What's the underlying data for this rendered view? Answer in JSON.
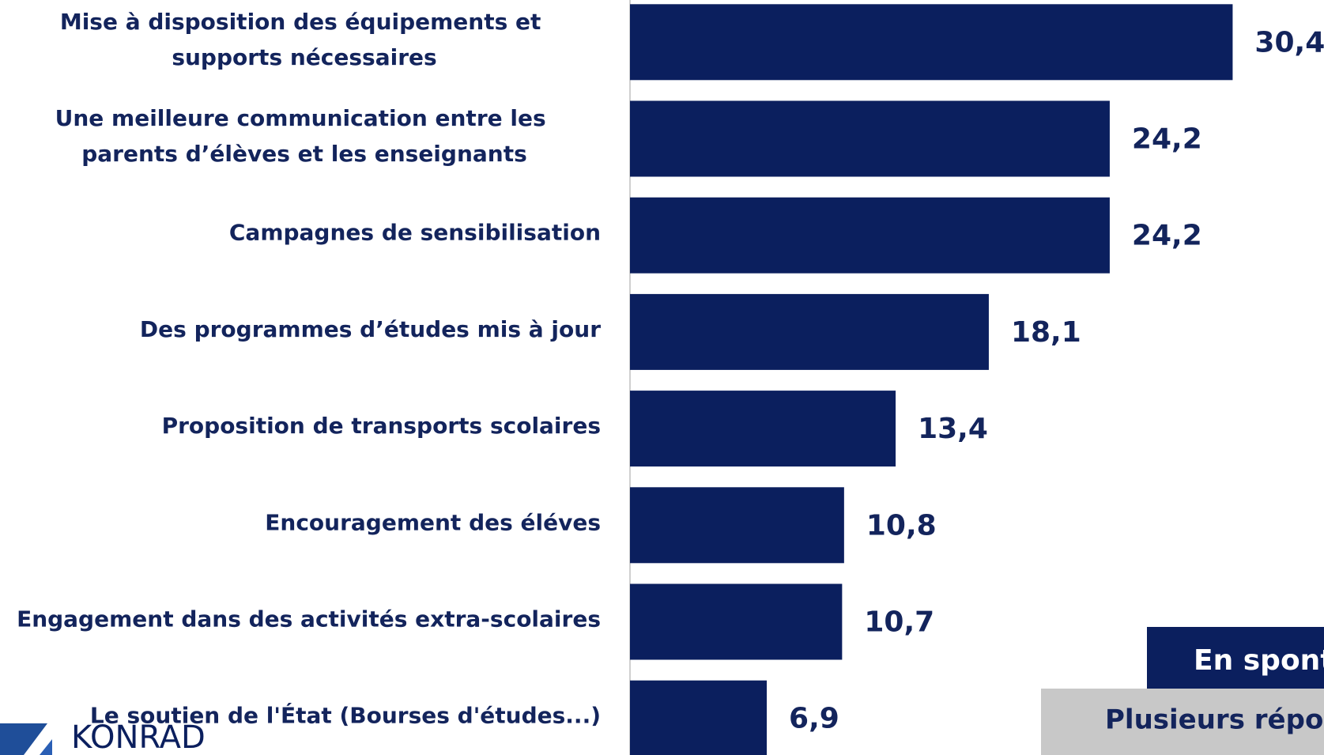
{
  "chart_data": {
    "type": "barh",
    "categories": [
      "Mise à disposition des équipements et supports nécessaires",
      "Une meilleure communication entre les parents d’élèves et les enseignants",
      "Campagnes de sensibilisation",
      "Des programmes d’études mis à jour",
      "Proposition de transports scolaires",
      "Encouragement des éléves",
      "Engagement dans des activités extra-scolaires",
      "Le soutien de l'État (Bourses d'études...)"
    ],
    "values": [
      30.4,
      24.2,
      24.2,
      18.1,
      13.4,
      10.8,
      10.7,
      6.9
    ],
    "value_labels": [
      "30,4",
      "24,2",
      "24,2",
      "18,1",
      "13,4",
      "10,8",
      "10,7",
      "6,9"
    ],
    "color": "#0b1f5e",
    "xlim": [
      0,
      35
    ]
  },
  "badges": {
    "mode": "En spontané",
    "note": "Plusieurs réponses possibles"
  },
  "logo": {
    "text": "KONRAD"
  }
}
